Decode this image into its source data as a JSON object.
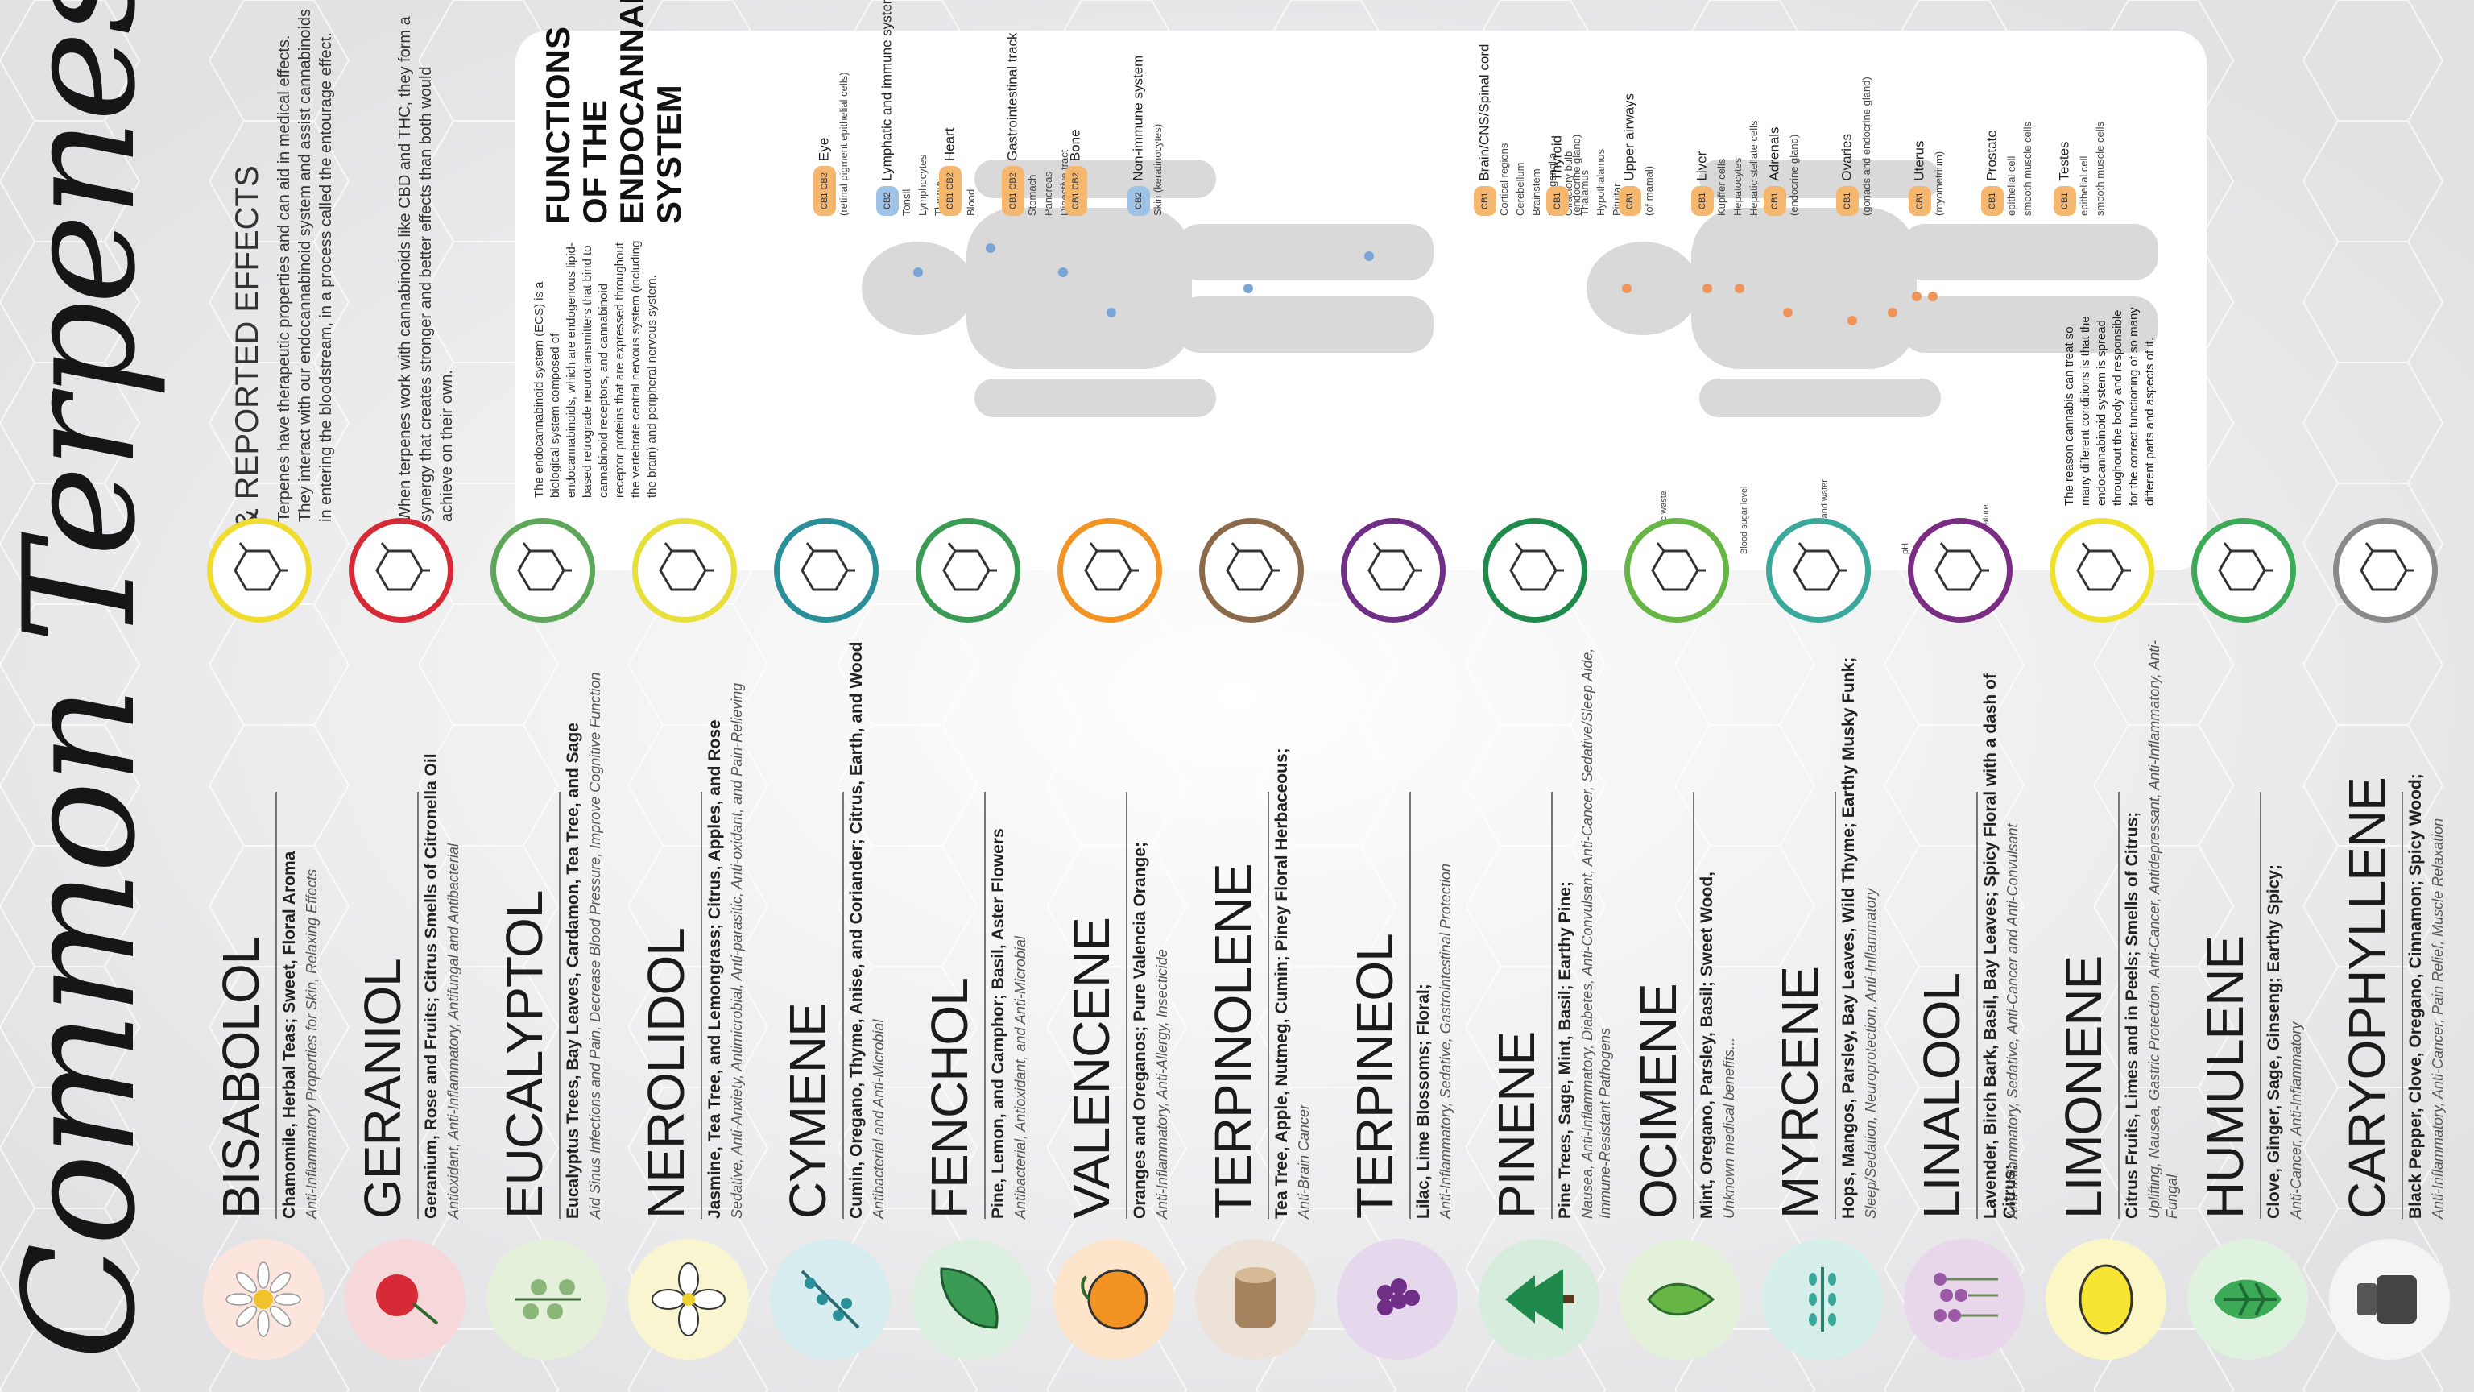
{
  "title": "Common Terpenes",
  "subtitle": "& REPORTED EFFECTS",
  "intro": [
    "Terpenes have therapeutic properties and can aid in medical effects. They interact with our endocannabinoid system and assist cannabinoids in entering the bloodstream, in a process called the entourage effect.",
    "When terpenes work with cannabinoids like CBD and THC, they form a synergy that creates stronger and better effects than both would achieve on their own."
  ],
  "ecs": {
    "title": "FUNCTIONS OF THE ENDOCANNABINIOD SYSTEM",
    "description": "The endocannabinoid system (ECS) is a biological system composed of endocannabinoids, which are endogenous lipid-based retrograde neurotransmitters that bind to cannabinoid receptors, and cannabinoid receptor proteins that are expressed throughout the vertebrate central nervous system (including the brain) and peripheral nervous system.",
    "footer": "The reason cannabis can treat so many different conditions is that the endocannabinoid system is spread throughout the body and responsible for the correct functioning of so many different parts and aspects of it.",
    "icons": [
      "Temperature",
      "pH",
      "Minerals and water",
      "Blood sugar level",
      "Metabolic waste"
    ],
    "left_organs": [
      {
        "receptor": "CB1 CB2",
        "name": "Eye",
        "note": "(retinal pigment epithelial cells)"
      },
      {
        "receptor": "CB2",
        "name": "Lymphatic and immune system",
        "items": [
          "Tonsil",
          "Lymphocytes",
          "Thymus",
          "Spleen",
          "Blood"
        ]
      },
      {
        "receptor": "CB1 CB2",
        "name": "Heart"
      },
      {
        "receptor": "CB1 CB2",
        "name": "Gastrointestinal track",
        "items": [
          "Stomach",
          "Pancreas",
          "Digestive tract"
        ]
      },
      {
        "receptor": "CB1 CB2",
        "name": "Bone"
      },
      {
        "receptor": "CB2",
        "name": "Non-immune system",
        "items": [
          "Skin (keratinocytes)"
        ]
      }
    ],
    "right_organs": [
      {
        "receptor": "CB1",
        "name": "Brain/CNS/Spinal cord",
        "items": [
          "Cortical regions",
          "Cerebellum",
          "Brainstem",
          "Basal ganglia",
          "Olfactory bulb",
          "Thalamus",
          "Hypothalamus",
          "Pituitar"
        ]
      },
      {
        "receptor": "CB1",
        "name": "Thyroid",
        "note": "(endocrine gland)"
      },
      {
        "receptor": "CB1",
        "name": "Upper airways",
        "note": "(of mamal)"
      },
      {
        "receptor": "CB1",
        "name": "Liver",
        "items": [
          "Kupffer cells",
          "Hepatocytes",
          "Hepatic stellate cells"
        ]
      },
      {
        "receptor": "CB1",
        "name": "Adrenals",
        "note": "(endocrine gland)"
      },
      {
        "receptor": "CB1",
        "name": "Ovaries",
        "note": "(gonads and endocrine gland)"
      },
      {
        "receptor": "CB1",
        "name": "Uterus",
        "note": "(myometrium)"
      },
      {
        "receptor": "CB1",
        "name": "Prostate",
        "items": [
          "epithelial cell",
          "smooth muscle cells"
        ]
      },
      {
        "receptor": "CB1",
        "name": "Testes",
        "items": [
          "epithelial cell",
          "smooth muscle cells"
        ]
      }
    ]
  },
  "terpenes": [
    {
      "name": "CARYOPHYLLENE",
      "sources": "Black Pepper, Clove, Oregano, Cinnamon; Spicy Wood;",
      "effects": "Anti-Inflammatory, Anti-Cancer, Pain Relief, Muscle Relaxation",
      "color": "#8a8a8a",
      "bg": "#f4f4f4",
      "icon": "grinder-icon"
    },
    {
      "name": "HUMULENE",
      "sources": "Clove, Ginger, Sage, Ginseng; Earthy Spicy;",
      "effects": "Anti-Cancer, Anti-Inflammatory",
      "color": "#3daa57",
      "bg": "#dff1df",
      "icon": "hops-icon"
    },
    {
      "name": "LIMONENE",
      "sources": "Citrus Fruits, Limes and in Peels; Smells of Citrus;",
      "effects": "Uplifting, Nausea, Gastric Protection, Anti-Cancer, Antidepressant, Anti-Inflammatory, Anti-Fungal",
      "color": "#f0e12a",
      "bg": "#fbf6c5",
      "icon": "lemon-icon"
    },
    {
      "name": "LINALOOL",
      "sources": "Lavender, Birch Bark, Basil, Bay Leaves; Spicy Floral with a dash of Citrus;",
      "effects": "Anti-Inflammatory, Sedative, Anti-Cancer and Anti-Convulsant",
      "color": "#7a2d83",
      "bg": "#e8d6ea",
      "icon": "lavender-icon"
    },
    {
      "name": "MYRCENE",
      "sources": "Hops, Mangos, Parsley, Bay Leaves, Wild Thyme; Earthy Musky Funk;",
      "effects": "Sleep/Sedation, Neuroprotection, Anti-Inflammatory",
      "color": "#3aa89a",
      "bg": "#d6efea",
      "icon": "thyme-icon"
    },
    {
      "name": "OCIMENE",
      "sources": "Mint, Oregano, Parsley, Basil; Sweet Wood,",
      "effects": "Unknown medical benefits...",
      "color": "#66b545",
      "bg": "#e3f1da",
      "icon": "mint-icon"
    },
    {
      "name": "PINENE",
      "sources": "Pine Trees, Sage, Mint, Basil; Earthy Pine;",
      "effects": "Nausea, Anti-Inflammatory, Diabetes, Anti-Convulsant, Anti-Cancer, Sedative/Sleep Aide, Immune-Resistant Pathogens",
      "color": "#1f8a4b",
      "bg": "#d8ecde",
      "icon": "pine-icon"
    },
    {
      "name": "TERPINEOL",
      "sources": "Lilac, Lime Blossoms; Floral;",
      "effects": "Anti-Inflammatory, Sedative, Gastrointestinal Protection",
      "color": "#6f2f86",
      "bg": "#e5d7ec",
      "icon": "lilac-icon"
    },
    {
      "name": "TERPINOLENE",
      "sources": "Tea Tree, Apple, Nutmeg, Cumin; Piney Floral Herbaceous;",
      "effects": "Anti-Brain Cancer",
      "color": "#8b6a4c",
      "bg": "#ece2d8",
      "icon": "log-icon"
    },
    {
      "name": "VALENCENE",
      "sources": "Oranges and Oreganos; Pure Valencia Orange;",
      "effects": "Anti-Inflammatory, Anti-Allergy, Insecticide",
      "color": "#f29324",
      "bg": "#fde5cb",
      "icon": "orange-icon"
    },
    {
      "name": "FENCHOL",
      "sources": "Pine, Lemon, and Camphor; Basil, Aster Flowers",
      "effects": "Antibacterial, Antioxidant, and Anti-Microbial",
      "color": "#3b9a54",
      "bg": "#dcefe0",
      "icon": "leaf-icon"
    },
    {
      "name": "CYMENE",
      "sources": "Cumin, Oregano, Thyme, Anise, and Coriander; Citrus, Earth, and Wood",
      "effects": "Antibacterial and Anti-Microbial",
      "color": "#2a8f98",
      "bg": "#d6ecee",
      "icon": "oregano-icon"
    },
    {
      "name": "NEROLIDOL",
      "sources": "Jasmine, Tea Tree, and Lemongrass; Citrus, Apples, and Rose",
      "effects": "Sedative, Anti-Anxiety, Antimicrobial, Anti-parasitic, Anti-oxidant, and Pain-Relieving",
      "color": "#e8e03a",
      "bg": "#f8f5d0",
      "icon": "jasmine-icon"
    },
    {
      "name": "EUCALYPTOL",
      "sources": "Eucalyptus Trees, Bay Leaves, Cardamon, Tea Tree, and Sage",
      "effects": "Aid Sinus Infections and Pain, Decrease Blood Pressure, Improve Cognitive Function",
      "color": "#5ea65a",
      "bg": "#e4f0d9",
      "icon": "eucalyptus-icon"
    },
    {
      "name": "GERANIOL",
      "sources": "Geranium, Rose and Fruits; Citrus Smells of Citronella Oil",
      "effects": "Antioxidant, Anti-Inflammatory, Antifungal and Antibacterial",
      "color": "#d62b36",
      "bg": "#f7d8da",
      "icon": "rose-icon"
    },
    {
      "name": "BISABOLOL",
      "sources": "Chamomile, Herbal Teas; Sweet, Floral Aroma",
      "effects": "Anti-Inflammatory Properties for Skin, Relaxing Effects",
      "color": "#f0dc2e",
      "bg": "#fbe5dd",
      "icon": "chamomile-icon"
    }
  ]
}
